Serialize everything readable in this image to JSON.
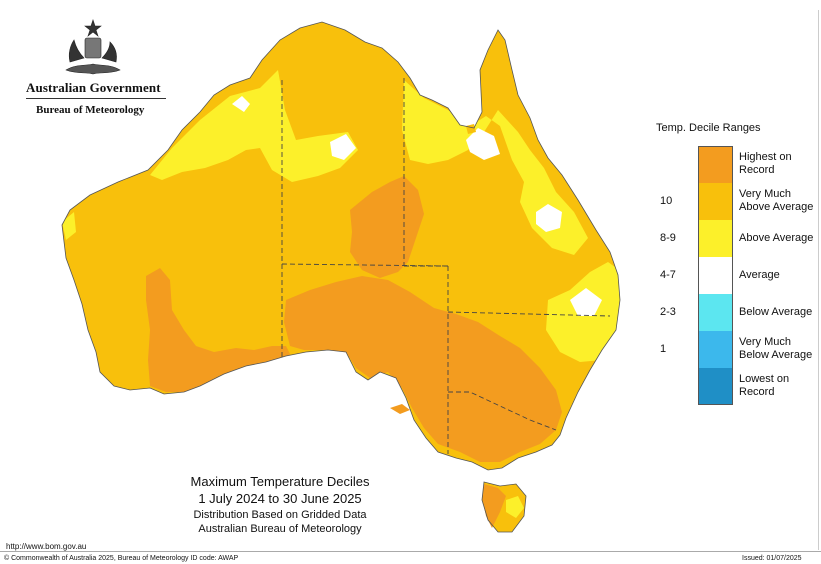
{
  "logo": {
    "organisation": "Australian Government",
    "department": "Bureau of Meteorology",
    "crest_icon": "commonwealth-coat-of-arms-icon"
  },
  "map": {
    "title": "Maximum Temperature Deciles",
    "period": "1 July 2024 to 30 June 2025",
    "note1": "Distribution Based on Gridded Data",
    "note2": "Australian Bureau of Meteorology"
  },
  "legend": {
    "title": "Temp. Decile Ranges",
    "items": [
      {
        "range": "",
        "label": "Highest on Record",
        "color": "#f39c1f"
      },
      {
        "range": "10",
        "label": "Very Much Above Average",
        "color": "#f8c00c"
      },
      {
        "range": "8-9",
        "label": "Above Average",
        "color": "#fcf02a"
      },
      {
        "range": "4-7",
        "label": "Average",
        "color": "#ffffff"
      },
      {
        "range": "2-3",
        "label": "Below Average",
        "color": "#5ce6f0"
      },
      {
        "range": "1",
        "label": "Very Much Below Average",
        "color": "#3cb8ec"
      },
      {
        "range": "",
        "label": "Lowest on Record",
        "color": "#1f8fc6"
      }
    ]
  },
  "footer": {
    "url": "http://www.bom.gov.au",
    "copyright": "© Commonwealth of Australia 2025, Bureau of Meteorology        ID code: AWAP",
    "issued": "Issued: 01/07/2025"
  }
}
